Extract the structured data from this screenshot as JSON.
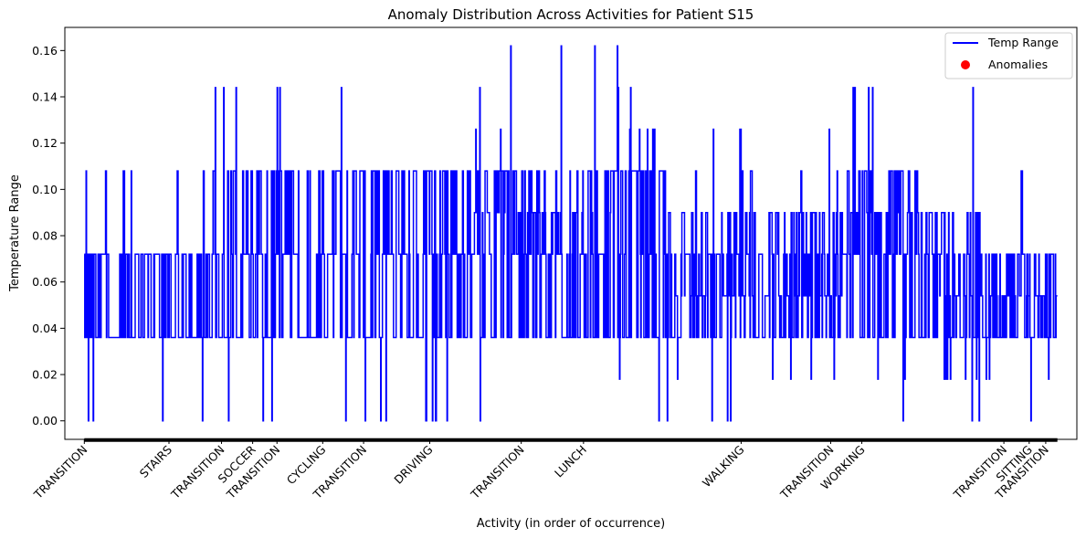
{
  "chart_data": {
    "type": "line",
    "title": "Anomaly Distribution Across Activities for Patient S15",
    "xlabel": "Activity (in order of occurrence)",
    "ylabel": "Temperature Range",
    "ylim": [
      -0.008,
      0.17
    ],
    "yticks": [
      0.0,
      0.02,
      0.04,
      0.06,
      0.08,
      0.1,
      0.12,
      0.14,
      0.16
    ],
    "ytick_labels": [
      "0.00",
      "0.02",
      "0.04",
      "0.06",
      "0.08",
      "0.10",
      "0.12",
      "0.14",
      "0.16"
    ],
    "xlim": [
      -0.02,
      1.02
    ],
    "xtick_positions": [
      0.0,
      0.087,
      0.141,
      0.173,
      0.198,
      0.245,
      0.287,
      0.355,
      0.449,
      0.513,
      0.675,
      0.767,
      0.799,
      0.945,
      0.971,
      0.988
    ],
    "xtick_labels": [
      "TRANSITION",
      "STAIRS",
      "TRANSITION",
      "SOCCER",
      "TRANSITION",
      "CYCLING",
      "TRANSITION",
      "DRIVING",
      "TRANSITION",
      "LUNCH",
      "WALKING",
      "TRANSITION",
      "WORKING",
      "TRANSITION",
      "SITTING",
      "TRANSITION"
    ],
    "grid": false,
    "legend_position": "upper right",
    "series": [
      {
        "name": "Temp Range",
        "color": "#0000ff",
        "kind": "line",
        "segments": [
          {
            "x0": 0.0,
            "x1": 0.06,
            "base": 0.036,
            "levels": [
              0.036,
              0.072
            ],
            "spikes": [
              0.108,
              0.0
            ]
          },
          {
            "x0": 0.06,
            "x1": 0.13,
            "base": 0.036,
            "levels": [
              0.036,
              0.072
            ],
            "spikes": [
              0.108,
              0.0
            ]
          },
          {
            "x0": 0.13,
            "x1": 0.27,
            "base": 0.036,
            "levels": [
              0.036,
              0.072,
              0.108
            ],
            "spikes": [
              0.144,
              0.0
            ]
          },
          {
            "x0": 0.27,
            "x1": 0.4,
            "base": 0.036,
            "levels": [
              0.036,
              0.072,
              0.108
            ],
            "spikes": [
              0.0
            ]
          },
          {
            "x0": 0.4,
            "x1": 0.55,
            "base": 0.036,
            "levels": [
              0.036,
              0.072,
              0.108,
              0.09
            ],
            "spikes": [
              0.144,
              0.162,
              0.126,
              0.0,
              0.018
            ]
          },
          {
            "x0": 0.55,
            "x1": 0.6,
            "base": 0.036,
            "levels": [
              0.036,
              0.072,
              0.108
            ],
            "spikes": [
              0.144,
              0.126,
              0.0
            ]
          },
          {
            "x0": 0.6,
            "x1": 0.78,
            "base": 0.036,
            "levels": [
              0.036,
              0.054,
              0.072,
              0.09
            ],
            "spikes": [
              0.108,
              0.126,
              0.0,
              0.018
            ]
          },
          {
            "x0": 0.78,
            "x1": 0.87,
            "base": 0.036,
            "levels": [
              0.036,
              0.072,
              0.09,
              0.108
            ],
            "spikes": [
              0.126,
              0.144,
              0.0,
              0.018
            ]
          },
          {
            "x0": 0.87,
            "x1": 0.92,
            "base": 0.036,
            "levels": [
              0.036,
              0.054,
              0.072,
              0.09
            ],
            "spikes": [
              0.0,
              0.018
            ]
          },
          {
            "x0": 0.92,
            "x1": 1.0,
            "base": 0.036,
            "levels": [
              0.036,
              0.054,
              0.072
            ],
            "spikes": [
              0.144,
              0.108,
              0.0,
              0.018
            ]
          }
        ]
      },
      {
        "name": "Anomalies",
        "color": "#ff0000",
        "kind": "scatter",
        "points": []
      }
    ]
  }
}
